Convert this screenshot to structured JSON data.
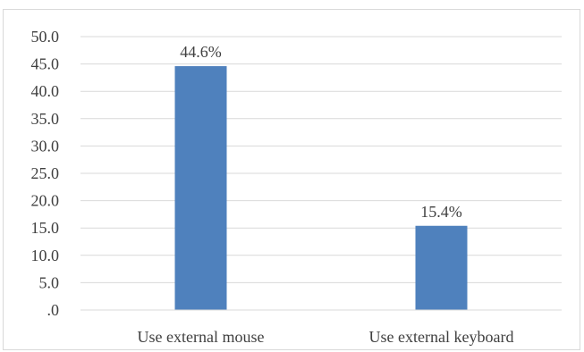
{
  "chart_data": {
    "type": "bar",
    "categories": [
      "Use external mouse",
      "Use external keyboard"
    ],
    "values": [
      44.6,
      15.4
    ],
    "data_labels": [
      "44.6%",
      "15.4%"
    ],
    "y_ticks": [
      ".0",
      "5.0",
      "10.0",
      "15.0",
      "20.0",
      "25.0",
      "30.0",
      "35.0",
      "40.0",
      "45.0",
      "50.0"
    ],
    "ylim": [
      0,
      50
    ],
    "ytick_step": 5,
    "grid": true,
    "legend": "none",
    "colors": {
      "bar": "#4f81bd",
      "grid": "#d9d9d9",
      "text": "#404040"
    }
  }
}
